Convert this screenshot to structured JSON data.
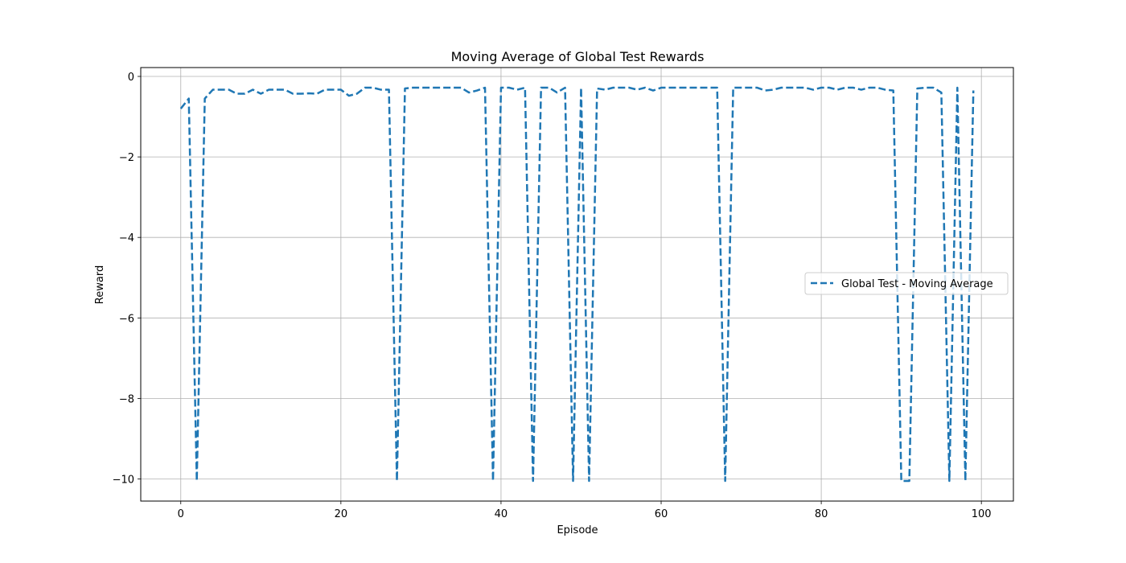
{
  "chart_data": {
    "type": "line",
    "title": "Moving Average of Global Test Rewards",
    "xlabel": "Episode",
    "ylabel": "Reward",
    "xlim": [
      -5,
      104
    ],
    "ylim": [
      -10.55,
      0.22
    ],
    "xticks": [
      0,
      20,
      40,
      60,
      80,
      100
    ],
    "yticks": [
      0,
      -2,
      -4,
      -6,
      -8,
      -10
    ],
    "xtick_labels": [
      "0",
      "20",
      "40",
      "60",
      "80",
      "100"
    ],
    "ytick_labels": [
      "0",
      "−2",
      "−4",
      "−6",
      "−8",
      "−10"
    ],
    "grid": true,
    "legend_position": "center-right",
    "series": [
      {
        "name": "Global Test - Moving Average",
        "color": "#1f77b4",
        "line_style": "dashed",
        "x": [
          0,
          1,
          2,
          3,
          4,
          5,
          6,
          7,
          8,
          9,
          10,
          11,
          12,
          13,
          14,
          15,
          16,
          17,
          18,
          19,
          20,
          21,
          22,
          23,
          24,
          25,
          26,
          27,
          28,
          29,
          30,
          31,
          32,
          33,
          34,
          35,
          36,
          37,
          38,
          39,
          40,
          41,
          42,
          43,
          44,
          45,
          46,
          47,
          48,
          49,
          50,
          51,
          52,
          53,
          54,
          55,
          56,
          57,
          58,
          59,
          60,
          61,
          62,
          63,
          64,
          65,
          66,
          67,
          68,
          69,
          70,
          71,
          72,
          73,
          74,
          75,
          76,
          77,
          78,
          79,
          80,
          81,
          82,
          83,
          84,
          85,
          86,
          87,
          88,
          89,
          90,
          91,
          92,
          93,
          94,
          95,
          96,
          97,
          98,
          99
        ],
        "y": [
          -0.8,
          -0.55,
          -10.05,
          -0.55,
          -0.33,
          -0.33,
          -0.33,
          -0.43,
          -0.43,
          -0.33,
          -0.43,
          -0.33,
          -0.33,
          -0.33,
          -0.43,
          -0.43,
          -0.42,
          -0.43,
          -0.33,
          -0.33,
          -0.33,
          -0.48,
          -0.43,
          -0.28,
          -0.28,
          -0.33,
          -0.33,
          -10.05,
          -0.3,
          -0.28,
          -0.28,
          -0.28,
          -0.28,
          -0.28,
          -0.28,
          -0.28,
          -0.4,
          -0.35,
          -0.28,
          -10.05,
          -0.28,
          -0.28,
          -0.33,
          -0.28,
          -10.05,
          -0.28,
          -0.28,
          -0.4,
          -0.28,
          -10.05,
          -0.28,
          -10.05,
          -0.3,
          -0.33,
          -0.28,
          -0.28,
          -0.28,
          -0.33,
          -0.28,
          -0.35,
          -0.28,
          -0.28,
          -0.28,
          -0.28,
          -0.28,
          -0.28,
          -0.28,
          -0.28,
          -10.05,
          -0.28,
          -0.28,
          -0.28,
          -0.28,
          -0.35,
          -0.33,
          -0.28,
          -0.28,
          -0.28,
          -0.28,
          -0.33,
          -0.28,
          -0.28,
          -0.33,
          -0.28,
          -0.28,
          -0.33,
          -0.28,
          -0.28,
          -0.33,
          -0.35,
          -10.05,
          -10.05,
          -0.3,
          -0.28,
          -0.28,
          -0.4,
          -10.05,
          -0.28,
          -10.05,
          -0.35
        ]
      }
    ]
  }
}
